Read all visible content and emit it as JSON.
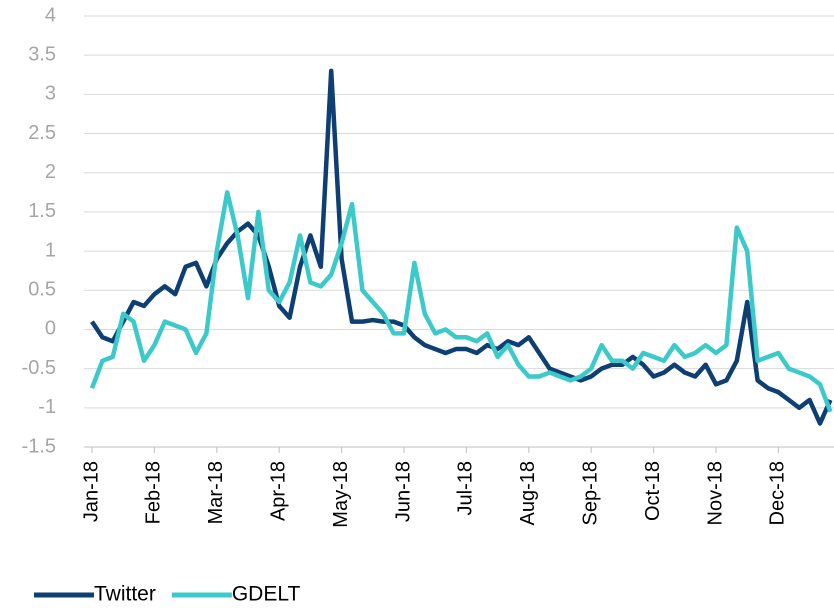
{
  "chart_data": {
    "type": "line",
    "categories": [
      "Jan-18",
      null,
      null,
      null,
      null,
      null,
      "Feb-18",
      null,
      null,
      null,
      null,
      null,
      "Mar-18",
      null,
      null,
      null,
      null,
      null,
      "Apr-18",
      null,
      null,
      null,
      null,
      null,
      "May-18",
      null,
      null,
      null,
      null,
      null,
      "Jun-18",
      null,
      null,
      null,
      null,
      null,
      "Jul-18",
      null,
      null,
      null,
      null,
      null,
      "Aug-18",
      null,
      null,
      null,
      null,
      null,
      "Sep-18",
      null,
      null,
      null,
      null,
      null,
      "Oct-18",
      null,
      null,
      null,
      null,
      null,
      "Nov-18",
      null,
      null,
      null,
      null,
      null,
      "Dec-18",
      null,
      null,
      null,
      null,
      null
    ],
    "series": [
      {
        "name": "Twitter",
        "color": "#0d3f73",
        "values": [
          0.1,
          -0.1,
          -0.15,
          0.1,
          0.35,
          0.3,
          0.45,
          0.55,
          0.45,
          0.8,
          0.85,
          0.55,
          0.9,
          1.1,
          1.25,
          1.35,
          1.2,
          0.8,
          0.3,
          0.15,
          0.8,
          1.2,
          0.8,
          3.3,
          0.9,
          0.1,
          0.1,
          0.12,
          0.1,
          0.1,
          0.05,
          -0.1,
          -0.2,
          -0.25,
          -0.3,
          -0.25,
          -0.25,
          -0.3,
          -0.2,
          -0.25,
          -0.15,
          -0.2,
          -0.1,
          -0.3,
          -0.5,
          -0.55,
          -0.6,
          -0.65,
          -0.6,
          -0.5,
          -0.45,
          -0.45,
          -0.35,
          -0.45,
          -0.6,
          -0.55,
          -0.45,
          -0.55,
          -0.6,
          -0.45,
          -0.7,
          -0.65,
          -0.4,
          0.35,
          -0.65,
          -0.75,
          -0.8,
          -0.9,
          -1.0,
          -0.9,
          -1.2,
          -0.9
        ]
      },
      {
        "name": "GDELT",
        "color": "#3cc9c9",
        "values": [
          -0.75,
          -0.4,
          -0.35,
          0.2,
          0.1,
          -0.4,
          -0.2,
          0.1,
          0.05,
          0.0,
          -0.3,
          -0.05,
          1.0,
          1.75,
          1.2,
          0.4,
          1.5,
          0.5,
          0.35,
          0.6,
          1.2,
          0.6,
          0.55,
          0.7,
          1.1,
          1.6,
          0.5,
          0.35,
          0.2,
          -0.05,
          -0.05,
          0.85,
          0.2,
          -0.05,
          0.0,
          -0.1,
          -0.1,
          -0.15,
          -0.05,
          -0.35,
          -0.2,
          -0.45,
          -0.6,
          -0.6,
          -0.55,
          -0.6,
          -0.65,
          -0.6,
          -0.5,
          -0.2,
          -0.4,
          -0.4,
          -0.5,
          -0.3,
          -0.35,
          -0.4,
          -0.2,
          -0.35,
          -0.3,
          -0.2,
          -0.3,
          -0.2,
          1.3,
          1.0,
          -0.4,
          -0.35,
          -0.3,
          -0.5,
          -0.55,
          -0.6,
          -0.7,
          -1.05
        ]
      }
    ],
    "ylim": [
      -1.5,
      4
    ],
    "yticks": [
      4,
      3.5,
      3,
      2.5,
      2,
      1.5,
      1,
      0.5,
      0,
      -0.5,
      -1,
      -1.5
    ],
    "grid": true,
    "legend": "bottom"
  }
}
